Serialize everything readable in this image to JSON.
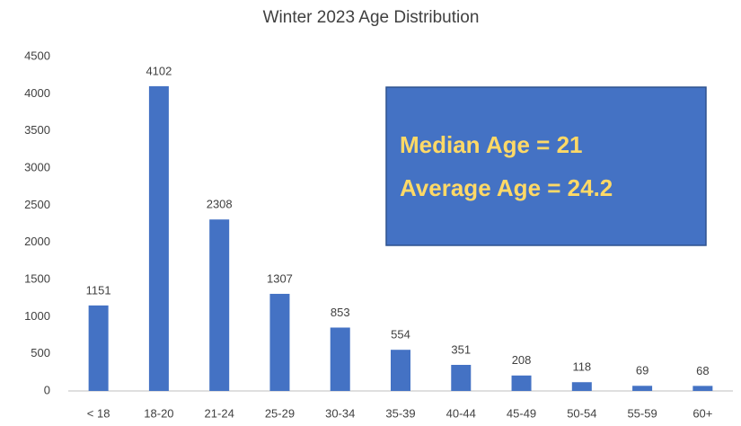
{
  "chart_data": {
    "type": "bar",
    "title": "Winter 2023 Age Distribution",
    "categories": [
      "< 18",
      "18-20",
      "21-24",
      "25-29",
      "30-34",
      "35-39",
      "40-44",
      "45-49",
      "50-54",
      "55-59",
      "60+"
    ],
    "values": [
      1151,
      4102,
      2308,
      1307,
      853,
      554,
      351,
      208,
      118,
      69,
      68
    ],
    "color": "#4472c4",
    "ylim": [
      0,
      4500
    ],
    "yticks": [
      0,
      500,
      1000,
      1500,
      2000,
      2500,
      3000,
      3500,
      4000,
      4500
    ],
    "grid": false,
    "annotations": [
      "Median Age = 21",
      "Average Age = 24.2"
    ]
  }
}
